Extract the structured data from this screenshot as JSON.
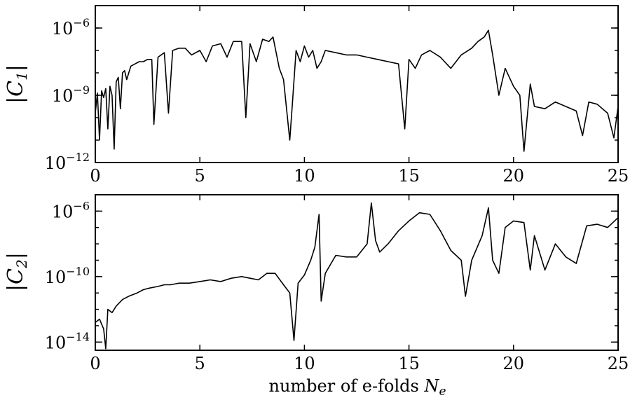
{
  "chart_data": [
    {
      "type": "line",
      "panel": "top",
      "ylabel_body": "|C",
      "ylabel_sub": "1",
      "ylabel_close": "|",
      "xlabel": "",
      "xlim": [
        0,
        25
      ],
      "ylim_log10": [
        -12,
        -5
      ],
      "y_scale": "log",
      "grid": false,
      "x_ticks": [
        0,
        5,
        10,
        15,
        20,
        25
      ],
      "y_ticks": [
        {
          "base": "10",
          "exp": "−6",
          "value": -6
        },
        {
          "base": "10",
          "exp": "−9",
          "value": -9
        },
        {
          "base": "10",
          "exp": "−12",
          "value": -12
        }
      ],
      "series": [
        {
          "color": "#000000",
          "x": [
            0.0,
            0.1,
            0.2,
            0.3,
            0.4,
            0.5,
            0.6,
            0.7,
            0.8,
            0.9,
            1.0,
            1.1,
            1.2,
            1.3,
            1.4,
            1.5,
            1.7,
            1.9,
            2.1,
            2.3,
            2.5,
            2.7,
            2.8,
            3.0,
            3.3,
            3.5,
            3.7,
            4.0,
            4.3,
            4.6,
            5.0,
            5.3,
            5.6,
            6.0,
            6.3,
            6.6,
            7.0,
            7.2,
            7.4,
            7.7,
            8.0,
            8.3,
            8.5,
            8.8,
            9.0,
            9.3,
            9.4,
            9.6,
            9.8,
            10.0,
            10.2,
            10.4,
            10.6,
            10.8,
            11.0,
            11.5,
            12.0,
            12.5,
            13.0,
            13.5,
            14.0,
            14.5,
            14.8,
            15.0,
            15.3,
            15.6,
            16.0,
            16.5,
            17.0,
            17.5,
            18.0,
            18.3,
            18.6,
            18.8,
            19.0,
            19.3,
            19.6,
            20.0,
            20.3,
            20.5,
            20.8,
            21.0,
            21.5,
            22.0,
            22.5,
            23.0,
            23.3,
            23.6,
            24.0,
            24.5,
            24.8,
            25.0
          ],
          "y_log10": [
            -9.8,
            -8.9,
            -11.0,
            -8.8,
            -9.1,
            -8.7,
            -10.5,
            -8.6,
            -9.0,
            -11.4,
            -8.4,
            -8.2,
            -9.6,
            -8.0,
            -7.9,
            -8.3,
            -7.7,
            -7.6,
            -7.5,
            -7.5,
            -7.4,
            -7.4,
            -10.3,
            -7.3,
            -7.1,
            -9.8,
            -7.0,
            -6.9,
            -6.9,
            -7.2,
            -7.0,
            -7.5,
            -6.8,
            -6.7,
            -7.3,
            -6.6,
            -6.6,
            -10.0,
            -6.7,
            -7.5,
            -6.5,
            -6.6,
            -6.4,
            -7.8,
            -8.3,
            -11.0,
            -9.7,
            -7.0,
            -7.5,
            -6.8,
            -7.3,
            -7.0,
            -7.8,
            -7.5,
            -7.0,
            -7.1,
            -7.2,
            -7.2,
            -7.3,
            -7.4,
            -7.5,
            -7.6,
            -10.5,
            -7.4,
            -7.8,
            -7.2,
            -7.0,
            -7.3,
            -7.8,
            -7.2,
            -6.9,
            -6.6,
            -6.4,
            -6.1,
            -7.2,
            -9.0,
            -7.8,
            -8.6,
            -9.0,
            -11.5,
            -8.5,
            -9.5,
            -9.6,
            -9.3,
            -9.5,
            -9.7,
            -10.8,
            -9.3,
            -9.4,
            -9.8,
            -10.9,
            -9.5
          ]
        }
      ]
    },
    {
      "type": "line",
      "panel": "bottom",
      "ylabel_body": "|C",
      "ylabel_sub": "2",
      "ylabel_close": "|",
      "xlabel": "number of e-folds ",
      "xlabel_sym": "N",
      "xlabel_sub": "e",
      "xlim": [
        0,
        25
      ],
      "ylim_log10": [
        -14.5,
        -5
      ],
      "y_scale": "log",
      "grid": false,
      "x_ticks": [
        0,
        5,
        10,
        15,
        20,
        25
      ],
      "y_ticks": [
        {
          "base": "10",
          "exp": "−6",
          "value": -6
        },
        {
          "base": "10",
          "exp": "−10",
          "value": -10
        },
        {
          "base": "10",
          "exp": "−14",
          "value": -14
        }
      ],
      "series": [
        {
          "color": "#000000",
          "x": [
            0.0,
            0.2,
            0.4,
            0.5,
            0.6,
            0.8,
            1.0,
            1.3,
            1.6,
            2.0,
            2.3,
            2.6,
            3.0,
            3.3,
            3.6,
            4.0,
            4.5,
            5.0,
            5.5,
            6.0,
            6.5,
            7.0,
            7.4,
            7.8,
            8.2,
            8.6,
            9.0,
            9.3,
            9.5,
            9.7,
            10.0,
            10.3,
            10.5,
            10.7,
            10.8,
            11.0,
            11.5,
            12.0,
            12.5,
            13.0,
            13.2,
            13.4,
            13.6,
            14.0,
            14.5,
            15.0,
            15.5,
            16.0,
            16.5,
            17.0,
            17.5,
            17.7,
            18.0,
            18.5,
            18.8,
            19.0,
            19.3,
            19.6,
            20.0,
            20.5,
            20.8,
            21.0,
            21.5,
            22.0,
            22.5,
            23.0,
            23.5,
            24.0,
            24.5,
            25.0
          ],
          "y_log10": [
            -12.8,
            -12.6,
            -13.2,
            -14.4,
            -12.0,
            -12.2,
            -11.8,
            -11.4,
            -11.2,
            -11.0,
            -10.8,
            -10.7,
            -10.6,
            -10.5,
            -10.5,
            -10.4,
            -10.4,
            -10.3,
            -10.2,
            -10.3,
            -10.1,
            -10.0,
            -10.1,
            -10.2,
            -9.8,
            -9.8,
            -10.5,
            -11.0,
            -13.9,
            -10.4,
            -9.9,
            -9.0,
            -8.2,
            -6.2,
            -11.5,
            -9.8,
            -8.7,
            -8.8,
            -8.8,
            -8.0,
            -5.5,
            -7.8,
            -8.5,
            -8.0,
            -7.2,
            -6.6,
            -6.1,
            -6.2,
            -7.2,
            -8.4,
            -9.0,
            -11.2,
            -9.0,
            -7.5,
            -5.8,
            -9.0,
            -9.8,
            -7.0,
            -6.6,
            -6.7,
            -9.6,
            -7.5,
            -9.6,
            -8.0,
            -8.8,
            -9.2,
            -6.9,
            -6.8,
            -7.0,
            -6.4
          ]
        }
      ]
    }
  ]
}
